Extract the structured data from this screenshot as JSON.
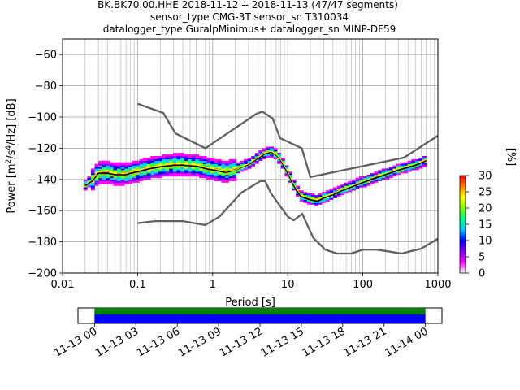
{
  "title_lines": [
    "BK.BK70.00.HHE   2018-11-12 -- 2018-11-13  (47/47 segments)",
    "sensor_type CMG-3T sensor_sn T310034",
    "datalogger_type GuralpMinimus+ datalogger_sn MINP-DF59"
  ],
  "chart_data": {
    "type": "heatmap",
    "xlabel": "Period [s]",
    "ylabel": "Power [m²/s⁴/Hz] [dB]",
    "ylabel_parts": {
      "main": "Power [m",
      "sup1": "2",
      "mid": "/s",
      "sup2": "4",
      "end": "/Hz] [dB]"
    },
    "xscale": "log",
    "xlim": [
      0.01,
      1000
    ],
    "ylim": [
      -200,
      -50
    ],
    "x_ticks": [
      0.01,
      0.1,
      1,
      10,
      100,
      1000
    ],
    "x_tick_labels": [
      "0.01",
      "0.1",
      "1",
      "10",
      "100",
      "1000"
    ],
    "y_ticks": [
      -200,
      -180,
      -160,
      -140,
      -120,
      -100,
      -80,
      -60
    ],
    "y_tick_labels": [
      "−200",
      "−180",
      "−160",
      "−140",
      "−120",
      "−100",
      "−80",
      "−60"
    ],
    "grid": true,
    "colorbar": {
      "label": "[%]",
      "range": [
        0,
        30
      ],
      "ticks": [
        0,
        5,
        10,
        15,
        20,
        25,
        30
      ],
      "colormap": [
        "#ffffff",
        "#ff00ff",
        "#8000ff",
        "#0000ff",
        "#00c8ff",
        "#00ff80",
        "#80ff00",
        "#ffff00",
        "#ff8000",
        "#ff0000"
      ]
    },
    "nlnm": {
      "name": "NLNM",
      "period": [
        0.1,
        0.17,
        0.4,
        0.8,
        1.24,
        2.4,
        4.3,
        5.0,
        6.0,
        10.0,
        12.0,
        15.6,
        21.9,
        31.6,
        45.0,
        70.0,
        101.0,
        154.0,
        328.0,
        600.0,
        1000.0
      ],
      "power": [
        -168,
        -166.7,
        -166.7,
        -169.2,
        -163.7,
        -148.6,
        -141.1,
        -141.1,
        -149,
        -163.8,
        -166.2,
        -162.1,
        -177.5,
        -185,
        -187.5,
        -187.5,
        -185,
        -185,
        -187.5,
        -184.4,
        -178
      ]
    },
    "nhnm": {
      "name": "NHNM",
      "period": [
        0.1,
        0.22,
        0.32,
        0.8,
        3.8,
        4.6,
        6.3,
        7.9,
        15.4,
        20.0,
        354.8,
        1000.0
      ],
      "power": [
        -91.5,
        -97.4,
        -110.5,
        -120,
        -98,
        -96.5,
        -101,
        -113.5,
        -120,
        -138.5,
        -126,
        -112
      ]
    },
    "mode_curve": {
      "period": [
        0.02,
        0.025,
        0.03,
        0.04,
        0.05,
        0.07,
        0.1,
        0.15,
        0.2,
        0.3,
        0.4,
        0.6,
        0.8,
        1.0,
        1.5,
        2.0,
        3.0,
        4.0,
        5.0,
        6.0,
        7.0,
        8.0,
        10.0,
        12.0,
        15.0,
        20.0,
        25.0,
        30.0,
        40.0,
        50.0,
        70.0,
        100.0,
        150.0,
        200.0,
        300.0,
        500.0,
        700.0
      ],
      "power": [
        -143,
        -140,
        -135,
        -134,
        -136,
        -136,
        -134,
        -132,
        -131,
        -130,
        -130,
        -130.5,
        -132,
        -133,
        -135,
        -134,
        -130,
        -126,
        -123,
        -122,
        -124,
        -127,
        -135,
        -143,
        -150,
        -152,
        -153,
        -151,
        -149,
        -147,
        -144,
        -141,
        -138,
        -136,
        -133,
        -130,
        -127
      ]
    },
    "mean_curve": {
      "period": [
        0.02,
        0.025,
        0.03,
        0.04,
        0.05,
        0.07,
        0.1,
        0.15,
        0.2,
        0.3,
        0.4,
        0.6,
        0.8,
        1.0,
        1.5,
        2.0,
        3.0,
        4.0,
        5.0,
        6.0,
        7.0,
        8.0,
        10.0,
        12.0,
        15.0,
        20.0,
        25.0,
        30.0,
        40.0,
        50.0,
        70.0,
        100.0,
        150.0,
        200.0,
        300.0,
        500.0,
        700.0
      ],
      "power": [
        -144,
        -141,
        -136,
        -136,
        -137,
        -137,
        -135,
        -133,
        -132,
        -131,
        -131,
        -131.5,
        -133,
        -134,
        -135.5,
        -134,
        -130.5,
        -126.5,
        -123.5,
        -122.5,
        -124.5,
        -127.5,
        -136,
        -144,
        -151,
        -153,
        -154,
        -152,
        -150,
        -147.5,
        -145,
        -142,
        -139,
        -137,
        -134,
        -131,
        -128
      ]
    }
  },
  "timeline": {
    "tick_labels": [
      "11-13 00",
      "11-13 03",
      "11-13 06",
      "11-13 09",
      "11-13 12",
      "11-13 15",
      "11-13 18",
      "11-13 21",
      "11-14 00"
    ],
    "tick_hours": [
      0,
      3,
      6,
      9,
      12,
      15,
      18,
      21,
      24
    ],
    "range_hours": [
      -1.2,
      25.2
    ],
    "data_span_hours": [
      0,
      24
    ],
    "bar_colors": {
      "top": "#008000",
      "bottom": "#0000ff"
    }
  }
}
